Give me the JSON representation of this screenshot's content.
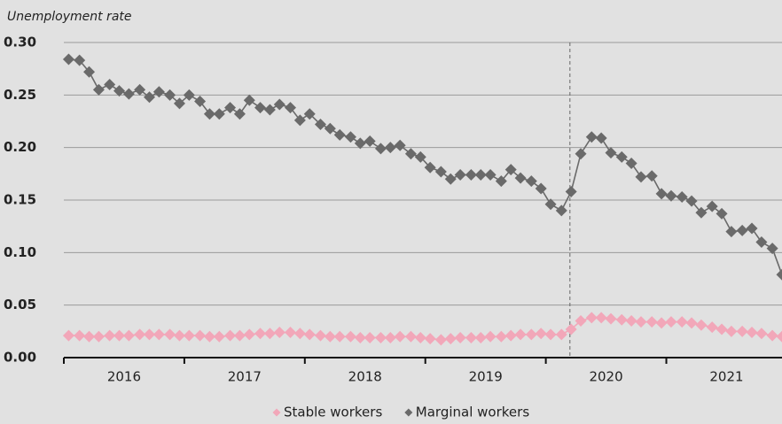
{
  "chart_data": {
    "type": "scatter-line",
    "y_label": "Unemployment rate",
    "xlim": [
      2016,
      2021.96
    ],
    "xticks": [
      {
        "value": 2016,
        "label": "2016"
      },
      {
        "value": 2017,
        "label": "2017"
      },
      {
        "value": 2018,
        "label": "2018"
      },
      {
        "value": 2019,
        "label": "2019"
      },
      {
        "value": 2020,
        "label": "2020"
      },
      {
        "value": 2021,
        "label": "2021"
      }
    ],
    "ylim": [
      0,
      0.3
    ],
    "yticks": [
      {
        "value": 0,
        "label": "0.00"
      },
      {
        "value": 0.05,
        "label": "0.05"
      },
      {
        "value": 0.1,
        "label": "0.10"
      },
      {
        "value": 0.15,
        "label": "0.15"
      },
      {
        "value": 0.2,
        "label": "0.20"
      },
      {
        "value": 0.25,
        "label": "0.25"
      },
      {
        "value": 0.3,
        "label": "0.30"
      }
    ],
    "grid": true,
    "legend": "bottom",
    "reference_line_x": 2020.2,
    "x": [
      2016.04,
      2016.13,
      2016.21,
      2016.29,
      2016.38,
      2016.46,
      2016.54,
      2016.63,
      2016.71,
      2016.79,
      2016.88,
      2016.96,
      2017.04,
      2017.13,
      2017.21,
      2017.29,
      2017.38,
      2017.46,
      2017.54,
      2017.63,
      2017.71,
      2017.79,
      2017.88,
      2017.96,
      2018.04,
      2018.13,
      2018.21,
      2018.29,
      2018.38,
      2018.46,
      2018.54,
      2018.63,
      2018.71,
      2018.79,
      2018.88,
      2018.96,
      2019.04,
      2019.13,
      2019.21,
      2019.29,
      2019.38,
      2019.46,
      2019.54,
      2019.63,
      2019.71,
      2019.79,
      2019.88,
      2019.96,
      2020.04,
      2020.13,
      2020.21,
      2020.29,
      2020.38,
      2020.46,
      2020.54,
      2020.63,
      2020.71,
      2020.79,
      2020.88,
      2020.96,
      2021.04,
      2021.13,
      2021.21,
      2021.29,
      2021.38,
      2021.46,
      2021.54,
      2021.63,
      2021.71,
      2021.79,
      2021.88,
      2021.96
    ],
    "series": [
      {
        "name": "Stable workers",
        "color": "#f2a7b9",
        "values": [
          0.021,
          0.021,
          0.02,
          0.02,
          0.021,
          0.021,
          0.021,
          0.022,
          0.022,
          0.022,
          0.022,
          0.021,
          0.021,
          0.021,
          0.02,
          0.02,
          0.021,
          0.021,
          0.022,
          0.023,
          0.023,
          0.024,
          0.024,
          0.023,
          0.022,
          0.021,
          0.02,
          0.02,
          0.02,
          0.019,
          0.019,
          0.019,
          0.019,
          0.02,
          0.02,
          0.019,
          0.018,
          0.017,
          0.018,
          0.019,
          0.019,
          0.019,
          0.02,
          0.02,
          0.021,
          0.022,
          0.022,
          0.023,
          0.022,
          0.022,
          0.027,
          0.035,
          0.038,
          0.038,
          0.037,
          0.036,
          0.035,
          0.034,
          0.034,
          0.033,
          0.034,
          0.034,
          0.033,
          0.031,
          0.029,
          0.027,
          0.025,
          0.025,
          0.024,
          0.023,
          0.021,
          0.02
        ]
      },
      {
        "name": "Marginal workers",
        "color": "#6a6a6a",
        "values": [
          0.284,
          0.283,
          0.272,
          0.255,
          0.26,
          0.254,
          0.251,
          0.255,
          0.248,
          0.253,
          0.25,
          0.242,
          0.25,
          0.244,
          0.232,
          0.232,
          0.238,
          0.232,
          0.245,
          0.238,
          0.236,
          0.241,
          0.238,
          0.226,
          0.232,
          0.222,
          0.218,
          0.212,
          0.21,
          0.204,
          0.206,
          0.199,
          0.2,
          0.202,
          0.194,
          0.191,
          0.181,
          0.177,
          0.17,
          0.174,
          0.174,
          0.174,
          0.174,
          0.168,
          0.179,
          0.171,
          0.168,
          0.161,
          0.146,
          0.14,
          0.158,
          0.194,
          0.21,
          0.209,
          0.195,
          0.191,
          0.185,
          0.172,
          0.173,
          0.156,
          0.154,
          0.153,
          0.149,
          0.138,
          0.144,
          0.137,
          0.12,
          0.121,
          0.123,
          0.11,
          0.104,
          0.079
        ]
      }
    ]
  }
}
